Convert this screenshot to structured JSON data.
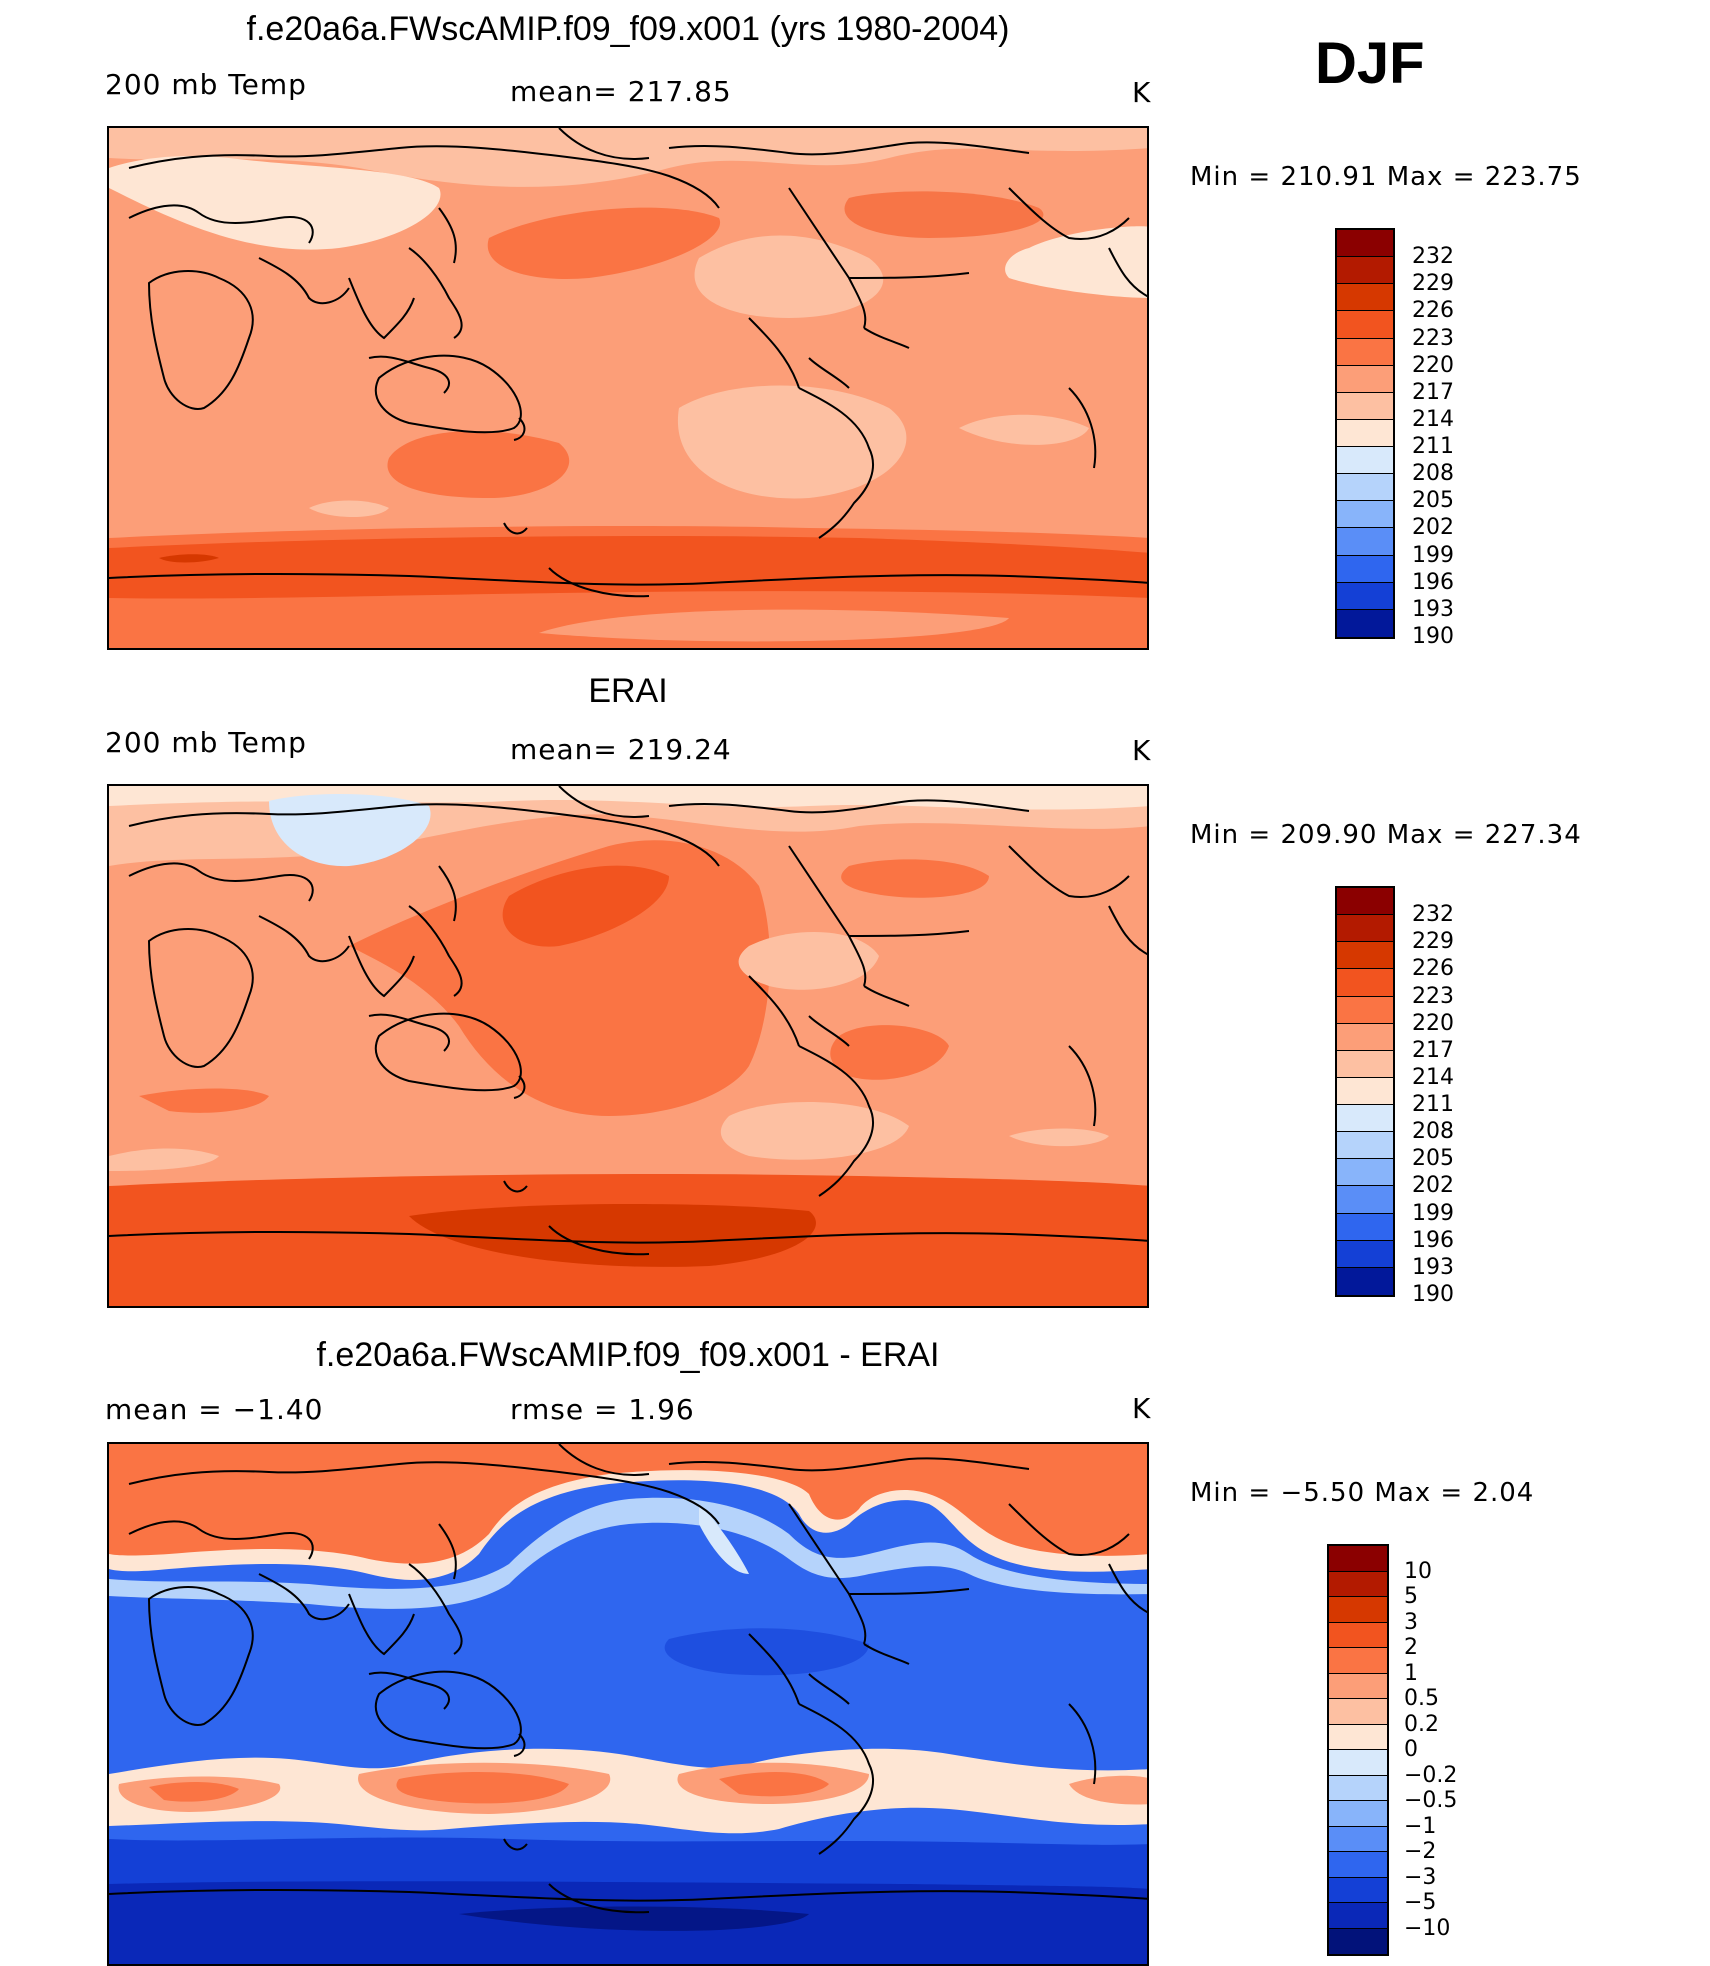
{
  "season": "DJF",
  "units": "K",
  "panels": [
    {
      "title": "f.e20a6a.FWscAMIP.f09_f09.x001 (yrs 1980-2004)",
      "left_label": "200 mb Temp",
      "center_label": "mean= 217.85",
      "units": "K",
      "minmax": "Min = 210.91 Max = 223.75",
      "colorbar_labels": [
        "232",
        "229",
        "226",
        "223",
        "220",
        "217",
        "214",
        "211",
        "208",
        "205",
        "202",
        "199",
        "196",
        "193",
        "190"
      ],
      "colorbar_colors": [
        "#8b0000",
        "#b31a00",
        "#d63800",
        "#f2541f",
        "#fa7444",
        "#fc9e78",
        "#fdc0a2",
        "#fee6d4",
        "#d8e9fb",
        "#b5d3fb",
        "#88b4fa",
        "#5a8ef7",
        "#2f66ef",
        "#1440d6",
        "#02189a"
      ]
    },
    {
      "title": "ERAI",
      "left_label": "200 mb Temp",
      "center_label": "mean= 219.24",
      "units": "K",
      "minmax": "Min = 209.90 Max = 227.34",
      "colorbar_labels": [
        "232",
        "229",
        "226",
        "223",
        "220",
        "217",
        "214",
        "211",
        "208",
        "205",
        "202",
        "199",
        "196",
        "193",
        "190"
      ],
      "colorbar_colors": [
        "#8b0000",
        "#b31a00",
        "#d63800",
        "#f2541f",
        "#fa7444",
        "#fc9e78",
        "#fdc0a2",
        "#fee6d4",
        "#d8e9fb",
        "#b5d3fb",
        "#88b4fa",
        "#5a8ef7",
        "#2f66ef",
        "#1440d6",
        "#02189a"
      ]
    },
    {
      "title": "f.e20a6a.FWscAMIP.f09_f09.x001 - ERAI",
      "left_label": "mean =   −1.40",
      "center_label": "rmse =    1.96",
      "units": "K",
      "minmax": "Min =  −5.50 Max =    2.04",
      "colorbar_labels": [
        "10",
        "5",
        "3",
        "2",
        "1",
        "0.5",
        "0.2",
        "0",
        "−0.2",
        "−0.5",
        "−1",
        "−2",
        "−3",
        "−5",
        "−10"
      ],
      "colorbar_colors": [
        "#8b0000",
        "#b31a00",
        "#d63800",
        "#f2541f",
        "#fa7444",
        "#fc9e78",
        "#fdc0a2",
        "#fee6d4",
        "#d8e9fb",
        "#b5d3fb",
        "#88b4fa",
        "#5a8ef7",
        "#2f66ef",
        "#1440d6",
        "#0a28b8",
        "#02127a"
      ]
    }
  ]
}
